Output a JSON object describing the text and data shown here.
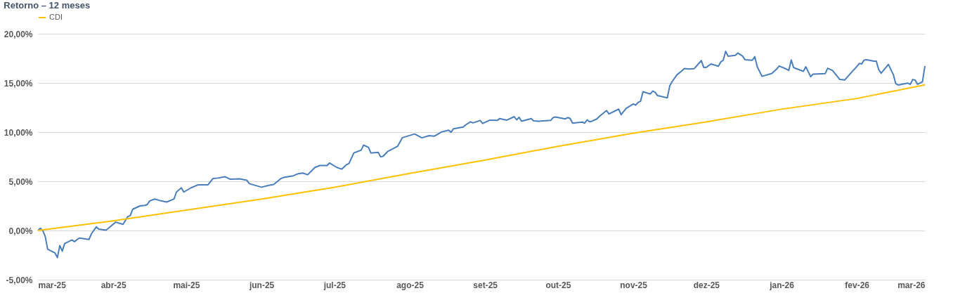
{
  "chart_data": {
    "type": "line",
    "title": "Retorno – 12 meses",
    "legend": "top",
    "grid": "y",
    "line_style": "solid",
    "marker": "none",
    "xlim": [
      "2025-03-01",
      "2026-03-01"
    ],
    "xticks": [
      {
        "value": "2025-03-01",
        "label": "mar-25"
      },
      {
        "value": "2025-04-01",
        "label": "abr-25"
      },
      {
        "value": "2025-05-01",
        "label": "mai-25"
      },
      {
        "value": "2025-06-01",
        "label": "jun-25"
      },
      {
        "value": "2025-07-01",
        "label": "jul-25"
      },
      {
        "value": "2025-08-01",
        "label": "ago-25"
      },
      {
        "value": "2025-09-01",
        "label": "set-25"
      },
      {
        "value": "2025-10-01",
        "label": "out-25"
      },
      {
        "value": "2025-11-01",
        "label": "nov-25"
      },
      {
        "value": "2025-12-01",
        "label": "dez-25"
      },
      {
        "value": "2026-01-01",
        "label": "jan-26"
      },
      {
        "value": "2026-02-01",
        "label": "fev-26"
      },
      {
        "value": "2026-03-01",
        "label": "mar-26"
      }
    ],
    "ylim": [
      -5,
      20
    ],
    "yticks": [
      {
        "value": -5,
        "label": "-5,00%"
      },
      {
        "value": 0,
        "label": "0,00%"
      },
      {
        "value": 5,
        "label": "5,00%"
      },
      {
        "value": 10,
        "label": "10,00%"
      },
      {
        "value": 15,
        "label": "15,00%"
      },
      {
        "value": 20,
        "label": "20,00%"
      }
    ],
    "series": [
      {
        "color": "#4a7ebb",
        "x": [
          "2025-03-01",
          "2025-03-02",
          "2025-03-03",
          "2025-03-04",
          "2025-03-05",
          "2025-03-08",
          "2025-03-09",
          "2025-03-10",
          "2025-03-11",
          "2025-03-12",
          "2025-03-15",
          "2025-03-16",
          "2025-03-18",
          "2025-03-22",
          "2025-03-23",
          "2025-03-25",
          "2025-03-26",
          "2025-03-29",
          "2025-03-30",
          "2025-04-02",
          "2025-04-05",
          "2025-04-07",
          "2025-04-08",
          "2025-04-09",
          "2025-04-12",
          "2025-04-14",
          "2025-04-15",
          "2025-04-16",
          "2025-04-18",
          "2025-04-20",
          "2025-04-23",
          "2025-04-26",
          "2025-04-27",
          "2025-04-29",
          "2025-04-30",
          "2025-05-03",
          "2025-05-06",
          "2025-05-10",
          "2025-05-12",
          "2025-05-14",
          "2025-05-17",
          "2025-05-19",
          "2025-05-23",
          "2025-05-26",
          "2025-05-27",
          "2025-06-01",
          "2025-06-04",
          "2025-06-06",
          "2025-06-09",
          "2025-06-10",
          "2025-06-14",
          "2025-06-16",
          "2025-06-18",
          "2025-06-20",
          "2025-06-23",
          "2025-06-25",
          "2025-06-28",
          "2025-06-29",
          "2025-07-02",
          "2025-07-04",
          "2025-07-06",
          "2025-07-07",
          "2025-07-09",
          "2025-07-12",
          "2025-07-13",
          "2025-07-15",
          "2025-07-16",
          "2025-07-19",
          "2025-07-20",
          "2025-07-21",
          "2025-07-23",
          "2025-07-27",
          "2025-07-29",
          "2025-08-03",
          "2025-08-06",
          "2025-08-09",
          "2025-08-11",
          "2025-08-12",
          "2025-08-14",
          "2025-08-17",
          "2025-08-18",
          "2025-08-19",
          "2025-08-23",
          "2025-08-24",
          "2025-08-26",
          "2025-08-27",
          "2025-08-30",
          "2025-08-31",
          "2025-09-03",
          "2025-09-06",
          "2025-09-07",
          "2025-09-10",
          "2025-09-13",
          "2025-09-14",
          "2025-09-15",
          "2025-09-16",
          "2025-09-20",
          "2025-09-21",
          "2025-09-23",
          "2025-09-28",
          "2025-09-29",
          "2025-09-30",
          "2025-10-04",
          "2025-10-05",
          "2025-10-06",
          "2025-10-07",
          "2025-10-11",
          "2025-10-12",
          "2025-10-13",
          "2025-10-14",
          "2025-10-15",
          "2025-10-17",
          "2025-10-18",
          "2025-10-21",
          "2025-10-22",
          "2025-10-26",
          "2025-10-27",
          "2025-10-29",
          "2025-11-01",
          "2025-11-02",
          "2025-11-03",
          "2025-11-04",
          "2025-11-05",
          "2025-11-08",
          "2025-11-09",
          "2025-11-10",
          "2025-11-11",
          "2025-11-15",
          "2025-11-16",
          "2025-11-17",
          "2025-11-19",
          "2025-11-21",
          "2025-11-22",
          "2025-11-24",
          "2025-11-26",
          "2025-11-29",
          "2025-11-30",
          "2025-12-01",
          "2025-12-03",
          "2025-12-06",
          "2025-12-07",
          "2025-12-08",
          "2025-12-09",
          "2025-12-10",
          "2025-12-13",
          "2025-12-14",
          "2025-12-16",
          "2025-12-17",
          "2025-12-20",
          "2025-12-21",
          "2025-12-22",
          "2025-12-24",
          "2025-12-28",
          "2025-12-30",
          "2025-12-31",
          "2026-01-03",
          "2026-01-04",
          "2026-01-05",
          "2026-01-06",
          "2026-01-10",
          "2026-01-11",
          "2026-01-13",
          "2026-01-14",
          "2026-01-19",
          "2026-01-20",
          "2026-01-22",
          "2026-01-25",
          "2026-01-27",
          "2026-01-30",
          "2026-02-01",
          "2026-02-02",
          "2026-02-03",
          "2026-02-04",
          "2026-02-05",
          "2026-02-08",
          "2026-02-09",
          "2026-02-10",
          "2026-02-11",
          "2026-02-14",
          "2026-02-16",
          "2026-02-17",
          "2026-02-18",
          "2026-02-22",
          "2026-02-23",
          "2026-02-24",
          "2026-02-25",
          "2026-02-26",
          "2026-02-28",
          "2026-03-01"
        ],
        "values": [
          0.0,
          0.23,
          0.0,
          -0.62,
          -1.9,
          -2.27,
          -2.75,
          -1.53,
          -2.1,
          -1.33,
          -0.96,
          -1.13,
          -0.77,
          -0.91,
          -0.34,
          0.37,
          0.14,
          0.03,
          0.23,
          0.85,
          0.62,
          1.42,
          1.53,
          2.16,
          2.5,
          2.55,
          2.64,
          3.01,
          3.2,
          3.06,
          2.89,
          3.2,
          3.91,
          4.34,
          3.91,
          4.34,
          4.65,
          4.65,
          5.28,
          5.33,
          5.47,
          5.22,
          5.25,
          5.1,
          4.76,
          4.4,
          4.59,
          4.68,
          5.28,
          5.39,
          5.56,
          5.76,
          5.84,
          5.67,
          6.41,
          6.61,
          6.61,
          6.86,
          6.41,
          6.24,
          6.69,
          6.81,
          7.88,
          8.17,
          8.68,
          8.45,
          7.88,
          7.94,
          7.49,
          7.54,
          8.05,
          8.56,
          9.44,
          9.81,
          9.42,
          9.64,
          9.59,
          9.7,
          10.01,
          10.19,
          9.99,
          10.34,
          10.51,
          10.73,
          11.05,
          10.94,
          11.19,
          10.88,
          11.22,
          11.19,
          11.37,
          11.22,
          11.57,
          11.25,
          11.51,
          11.11,
          11.37,
          11.14,
          11.11,
          11.19,
          11.48,
          11.54,
          11.34,
          11.48,
          11.39,
          10.91,
          11.02,
          10.91,
          11.25,
          11.05,
          11.11,
          11.34,
          11.59,
          12.19,
          11.85,
          12.34,
          11.77,
          12.4,
          12.86,
          12.74,
          13.03,
          13.14,
          14.11,
          13.88,
          14.17,
          14.05,
          13.71,
          13.48,
          14.69,
          15.14,
          15.83,
          16.23,
          16.47,
          16.41,
          16.44,
          17.27,
          16.58,
          16.58,
          16.93,
          16.7,
          17.13,
          17.3,
          18.21,
          17.72,
          17.81,
          18.04,
          17.72,
          17.35,
          17.3,
          17.67,
          16.64,
          15.67,
          15.96,
          16.41,
          16.72,
          16.41,
          16.27,
          17.33,
          16.55,
          16.18,
          16.64,
          15.63,
          15.89,
          15.95,
          16.49,
          16.26,
          15.35,
          15.3,
          16.13,
          16.67,
          16.98,
          16.93,
          17.33,
          17.36,
          17.22,
          17.22,
          16.36,
          15.99,
          16.88,
          15.85,
          14.93,
          14.78,
          14.98,
          14.86,
          15.35,
          15.29,
          14.86,
          15.12,
          16.72
        ]
      },
      {
        "name": "CDI",
        "color": "#ffc000",
        "x": [
          "2025-03-01",
          "2025-04-01",
          "2025-05-01",
          "2025-06-01",
          "2025-07-01",
          "2025-08-01",
          "2025-09-01",
          "2025-10-01",
          "2025-11-01",
          "2025-12-01",
          "2026-01-01",
          "2026-02-01",
          "2026-03-01"
        ],
        "values": [
          0.0,
          0.99,
          2.07,
          3.2,
          4.4,
          5.8,
          7.16,
          8.56,
          9.9,
          11.04,
          12.33,
          13.42,
          14.8
        ]
      }
    ]
  }
}
